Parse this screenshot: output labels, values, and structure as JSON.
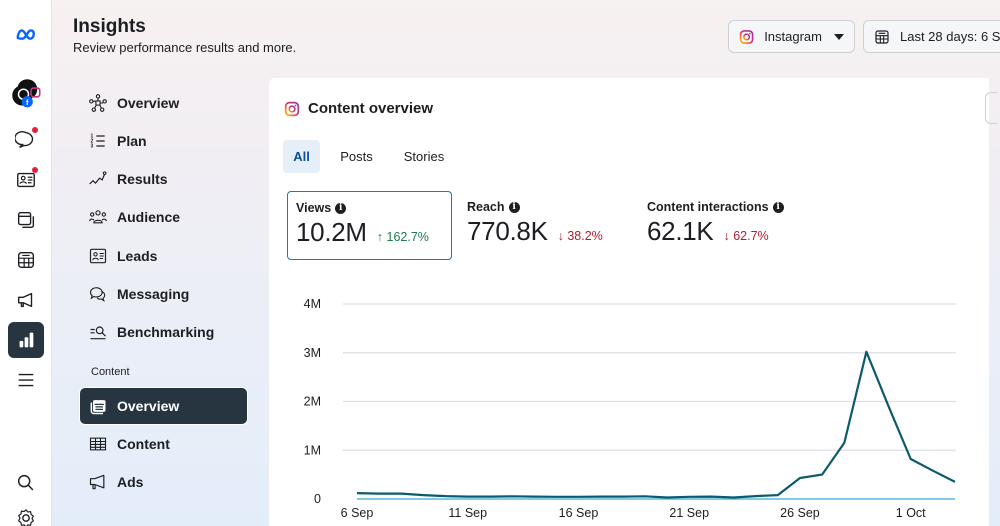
{
  "header": {
    "title": "Insights",
    "subtitle": "Review performance results and more."
  },
  "rail": {
    "items": [
      {
        "icon": "meta-logo-icon"
      },
      {
        "icon": "accounts-avatar-icon"
      },
      {
        "icon": "chat-icon",
        "badge": true
      },
      {
        "icon": "contact-card-icon",
        "badge": true
      },
      {
        "icon": "posts-icon"
      },
      {
        "icon": "calendar-icon"
      },
      {
        "icon": "megaphone-icon"
      },
      {
        "icon": "insights-bar-chart-icon",
        "active": true
      },
      {
        "icon": "menu-icon"
      },
      {
        "icon": "search-icon"
      },
      {
        "icon": "settings-gear-icon"
      }
    ]
  },
  "controls": {
    "platform_label": "Instagram",
    "date_range_label": "Last 28 days: 6 Se"
  },
  "nav": {
    "items": [
      {
        "label": "Overview",
        "icon": "network-icon"
      },
      {
        "label": "Plan",
        "icon": "numbered-list-icon"
      },
      {
        "label": "Results",
        "icon": "trend-line-icon"
      },
      {
        "label": "Audience",
        "icon": "people-icon"
      },
      {
        "label": "Leads",
        "icon": "contact-card-icon"
      },
      {
        "label": "Messaging",
        "icon": "chat-bubbles-icon"
      },
      {
        "label": "Benchmarking",
        "icon": "benchmark-icon"
      }
    ],
    "section_label": "Content",
    "content_items": [
      {
        "label": "Overview",
        "icon": "content-overview-icon",
        "active": true
      },
      {
        "label": "Content",
        "icon": "table-icon"
      },
      {
        "label": "Ads",
        "icon": "megaphone-icon"
      }
    ]
  },
  "card": {
    "title": "Content overview",
    "tabs": [
      {
        "label": "All",
        "active": true
      },
      {
        "label": "Posts"
      },
      {
        "label": "Stories"
      }
    ],
    "metrics": [
      {
        "label": "Views",
        "value": "10.2M",
        "delta": "162.7%",
        "direction": "up",
        "selected": true
      },
      {
        "label": "Reach",
        "value": "770.8K",
        "delta": "38.2%",
        "direction": "down"
      },
      {
        "label": "Content interactions",
        "value": "62.1K",
        "delta": "62.7%",
        "direction": "down"
      }
    ]
  },
  "colors": {
    "line": "#0b5b6b",
    "baseline": "#5cb8e0",
    "grid": "#dddfe2",
    "up": "#1e7a4f",
    "down": "#b01d2e",
    "active_nav": "#263540"
  },
  "chart_data": {
    "type": "line",
    "title": "",
    "xlabel": "",
    "ylabel": "",
    "ylim": [
      0,
      4000000
    ],
    "yticks": [
      0,
      1000000,
      2000000,
      3000000,
      4000000
    ],
    "ytick_labels": [
      "0",
      "1M",
      "2M",
      "3M",
      "4M"
    ],
    "xtick_labels": [
      "6 Sep",
      "11 Sep",
      "16 Sep",
      "21 Sep",
      "26 Sep",
      "1 Oct"
    ],
    "xtick_indices": [
      0,
      5,
      10,
      15,
      20,
      25
    ],
    "grid": true,
    "x": [
      "6 Sep",
      "7 Sep",
      "8 Sep",
      "9 Sep",
      "10 Sep",
      "11 Sep",
      "12 Sep",
      "13 Sep",
      "14 Sep",
      "15 Sep",
      "16 Sep",
      "17 Sep",
      "18 Sep",
      "19 Sep",
      "20 Sep",
      "21 Sep",
      "22 Sep",
      "23 Sep",
      "24 Sep",
      "25 Sep",
      "26 Sep",
      "27 Sep",
      "28 Sep",
      "29 Sep",
      "30 Sep",
      "1 Oct",
      "2 Oct",
      "3 Oct"
    ],
    "series": [
      {
        "name": "Views",
        "values": [
          120000,
          110000,
          110000,
          80000,
          60000,
          50000,
          50000,
          55000,
          50000,
          45000,
          45000,
          50000,
          50000,
          55000,
          30000,
          45000,
          50000,
          30000,
          60000,
          80000,
          430000,
          500000,
          1150000,
          3020000,
          1900000,
          820000,
          580000,
          350000
        ]
      }
    ]
  }
}
